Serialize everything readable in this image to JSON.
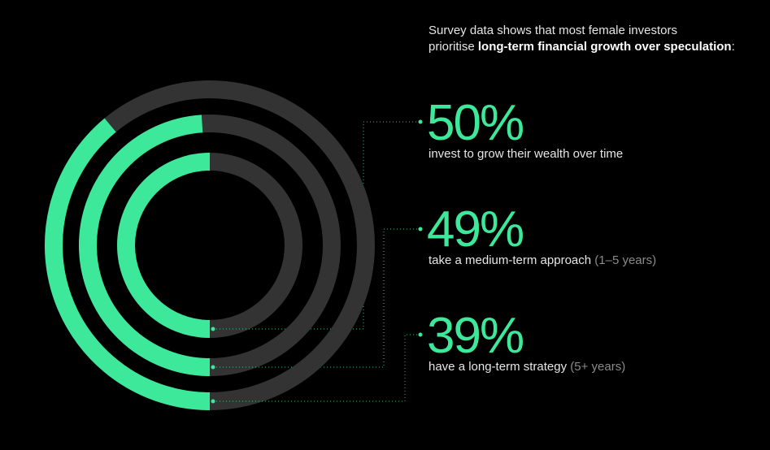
{
  "chart_data": {
    "type": "radial_bar",
    "title": "Survey data shows that most female investors",
    "title_line2": "prioritise",
    "title_emphasis": "long-term financial growth over speculation",
    "title_end": ":",
    "color": "#3ee89a",
    "track_color": "#333333",
    "series": [
      {
        "value": 50,
        "value_label": "50%",
        "description": "invest to grow their wealth over time"
      },
      {
        "value": 49,
        "value_label": "49%",
        "description": "take a medium-term approach",
        "note": "(1–5 years)"
      },
      {
        "value": 39,
        "value_label": "39%",
        "description": "have a long-term strategy",
        "note": "(5+ years)"
      }
    ]
  }
}
